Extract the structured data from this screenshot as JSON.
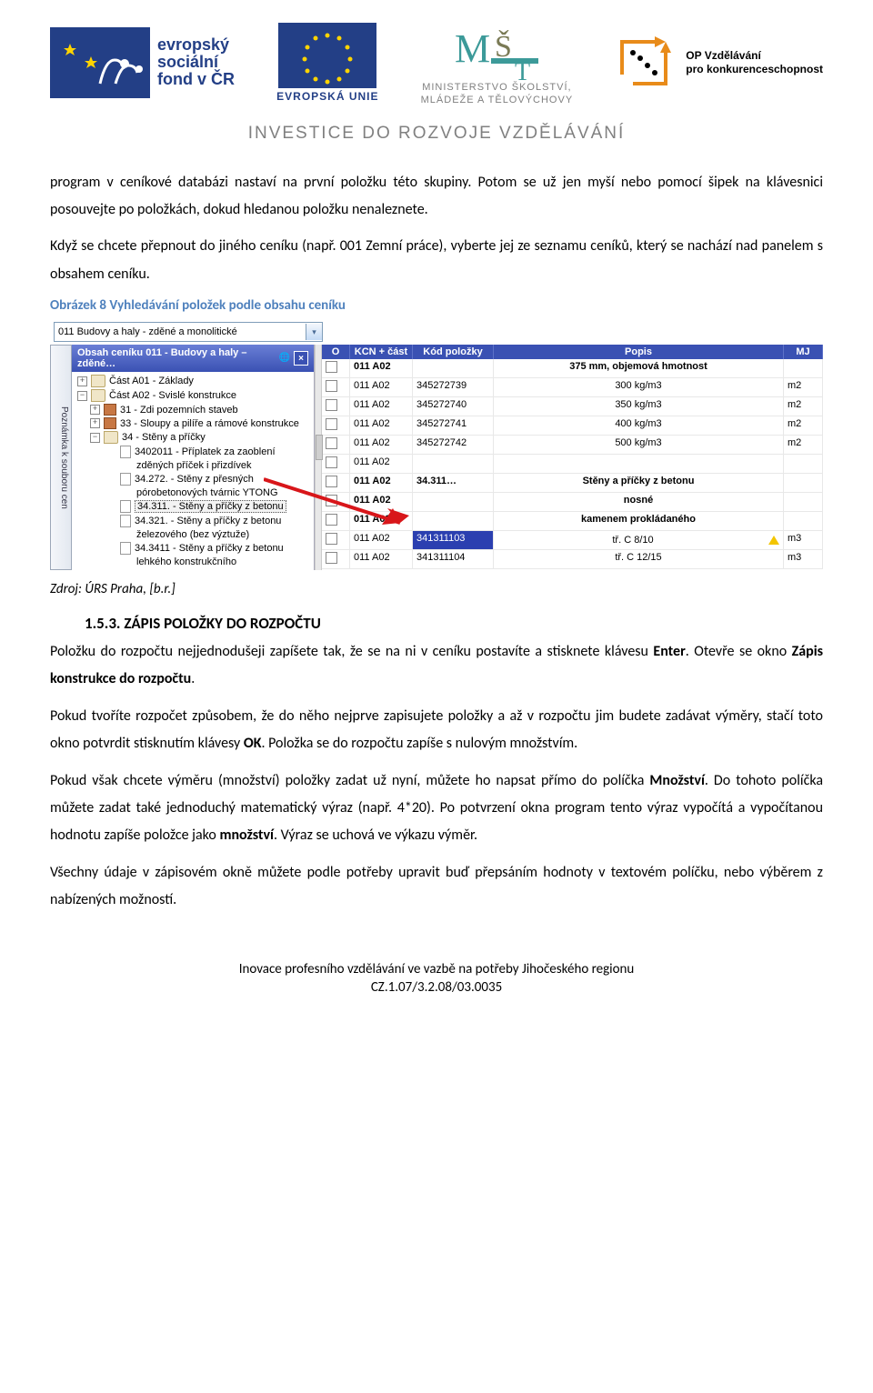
{
  "header": {
    "esf": {
      "line1": "evropský",
      "line2": "sociální",
      "line3": "fond v ČR"
    },
    "eu_label": "EVROPSKÁ UNIE",
    "ministry": {
      "line1": "MINISTERSTVO ŠKOLSTVÍ,",
      "line2": "MLÁDEŽE A TĚLOVÝCHOVY"
    },
    "op": {
      "line1": "OP Vzdělávání",
      "line2": "pro konkurenceschopnost"
    },
    "investice": "INVESTICE DO ROZVOJE VZDĚLÁVÁNÍ"
  },
  "paragraphs": {
    "p1": "program v ceníkové databázi nastaví na první položku této skupiny. Potom se už jen myší nebo pomocí šipek na klávesnici posouvejte po položkách, dokud hledanou položku nenaleznete.",
    "p2": "Když se chcete přepnout do jiného ceníku (např. 001 Zemní práce), vyberte jej ze seznamu ceníků, který se nachází nad panelem s obsahem ceníku."
  },
  "figure_caption": "Obrázek 8 Vyhledávání položek podle obsahu ceníku",
  "screenshot": {
    "select_value": "011  Budovy a haly - zděné a monolitické",
    "side_tab": "Poznámka k souboru cen",
    "tree_title": "Obsah ceníku 011 - Budovy a haly – zděné…",
    "tree": [
      {
        "indent": 0,
        "exp": "+",
        "icon": "book",
        "label": "Část A01 - Základy"
      },
      {
        "indent": 0,
        "exp": "−",
        "icon": "book",
        "label": "Část A02 - Svislé konstrukce"
      },
      {
        "indent": 1,
        "exp": "+",
        "icon": "brick",
        "label": "31 - Zdi pozemních staveb"
      },
      {
        "indent": 1,
        "exp": "+",
        "icon": "brick",
        "label": "33 - Sloupy a pilíře a rámové konstrukce"
      },
      {
        "indent": 1,
        "exp": "−",
        "icon": "book",
        "label": "34 - Stěny a příčky"
      },
      {
        "indent": 2,
        "exp": "",
        "icon": "page",
        "label": "3402011 - Příplatek za zaoblení"
      },
      {
        "indent": 3,
        "exp": "",
        "icon": "",
        "label": "zděných příček i přizdívek"
      },
      {
        "indent": 2,
        "exp": "",
        "icon": "page",
        "label": "34.272. - Stěny z přesných"
      },
      {
        "indent": 3,
        "exp": "",
        "icon": "",
        "label": "pórobetonových tvárnic YTONG"
      },
      {
        "indent": 2,
        "exp": "",
        "icon": "page",
        "label": "34.311. - Stěny a příčky z betonu",
        "selected": true
      },
      {
        "indent": 2,
        "exp": "",
        "icon": "page",
        "label": "34.321. - Stěny a příčky z betonu"
      },
      {
        "indent": 3,
        "exp": "",
        "icon": "",
        "label": "železového (bez výztuže)"
      },
      {
        "indent": 2,
        "exp": "",
        "icon": "page",
        "label": "34.3411 - Stěny a příčky z betonu"
      },
      {
        "indent": 3,
        "exp": "",
        "icon": "",
        "label": "lehkého konstrukčního"
      }
    ],
    "grid": {
      "headers": {
        "o": "O",
        "kcn": "KCN + část",
        "kod": "Kód položky",
        "popis": "Popis",
        "mj": "MJ"
      },
      "rows": [
        {
          "bold": true,
          "kcn": "011 A02",
          "kod": "",
          "popis": "375 mm, objemová hmotnost",
          "mj": ""
        },
        {
          "kcn": "011 A02",
          "kod": "345272739",
          "popis": "300 kg/m3",
          "mj": "m2"
        },
        {
          "kcn": "011 A02",
          "kod": "345272740",
          "popis": "350 kg/m3",
          "mj": "m2"
        },
        {
          "kcn": "011 A02",
          "kod": "345272741",
          "popis": "400 kg/m3",
          "mj": "m2"
        },
        {
          "kcn": "011 A02",
          "kod": "345272742",
          "popis": "500 kg/m3",
          "mj": "m2"
        },
        {
          "kcn": "011 A02",
          "kod": "",
          "popis": "",
          "mj": ""
        },
        {
          "bold": true,
          "kcn": "011 A02",
          "kod": "34.311…",
          "popis": "Stěny a příčky z betonu",
          "mj": ""
        },
        {
          "bold": true,
          "kcn": "011 A02",
          "kod": "",
          "popis": "nosné",
          "mj": ""
        },
        {
          "bold": true,
          "kcn": "011 A02",
          "kod": "",
          "popis": "kamenem prokládaného",
          "mj": ""
        },
        {
          "kcn": "011 A02",
          "kod": "341311103",
          "popis": "tř. C 8/10",
          "mj": "m3",
          "warn": true,
          "highlight_kod": true
        },
        {
          "kcn": "011 A02",
          "kod": "341311104",
          "popis": "tř. C 12/15",
          "mj": "m3"
        }
      ]
    },
    "colors": {
      "panel_header_bg": "#4455b3",
      "grid_header_bg": "#3a51b3",
      "select_border": "#7f9db9",
      "highlight_kod": "#2b3fb0",
      "arrow": "#d8161a"
    }
  },
  "source": "Zdroj: ÚRS Praha, [b.r.]",
  "section": {
    "number": "1.5.3.",
    "title": "ZÁPIS POLOŽKY DO ROZPOČTU"
  },
  "body2": {
    "p1a": "Položku do rozpočtu nejjednodušeji zapíšete tak, že se na ni v ceníku postavíte a stisknete klávesu ",
    "p1b_bold": "Enter",
    "p1c": ". Otevře se okno ",
    "p1d_bold": "Zápis konstrukce do rozpočtu",
    "p1e": ".",
    "p2a": "Pokud tvoříte rozpočet způsobem, že do něho nejprve zapisujete položky a až v rozpočtu jim budete zadávat výměry, stačí toto okno potvrdit stisknutím klávesy ",
    "p2b_bold": "OK",
    "p2c": ". Položka se do rozpočtu zapíše s nulovým množstvím.",
    "p3a": "Pokud však chcete výměru (množství) položky zadat už nyní, můžete ho napsat přímo do políčka ",
    "p3b_bold": "Množství",
    "p3c": ". Do tohoto políčka můžete zadat také jednoduchý matematický výraz (např. 4*20). Po potvrzení okna program tento výraz vypočítá a vypočítanou hodnotu zapíše položce jako ",
    "p3d_bold": "množství",
    "p3e": ". Výraz se uchová ve výkazu výměr.",
    "p4": "Všechny údaje v zápisovém okně můžete podle potřeby upravit buď přepsáním hodnoty v textovém políčku, nebo výběrem z nabízených možností."
  },
  "footer": {
    "line1": "Inovace profesního vzdělávání ve vazbě na potřeby Jihočeského regionu",
    "line2": "CZ.1.07/3.2.08/03.0035"
  }
}
